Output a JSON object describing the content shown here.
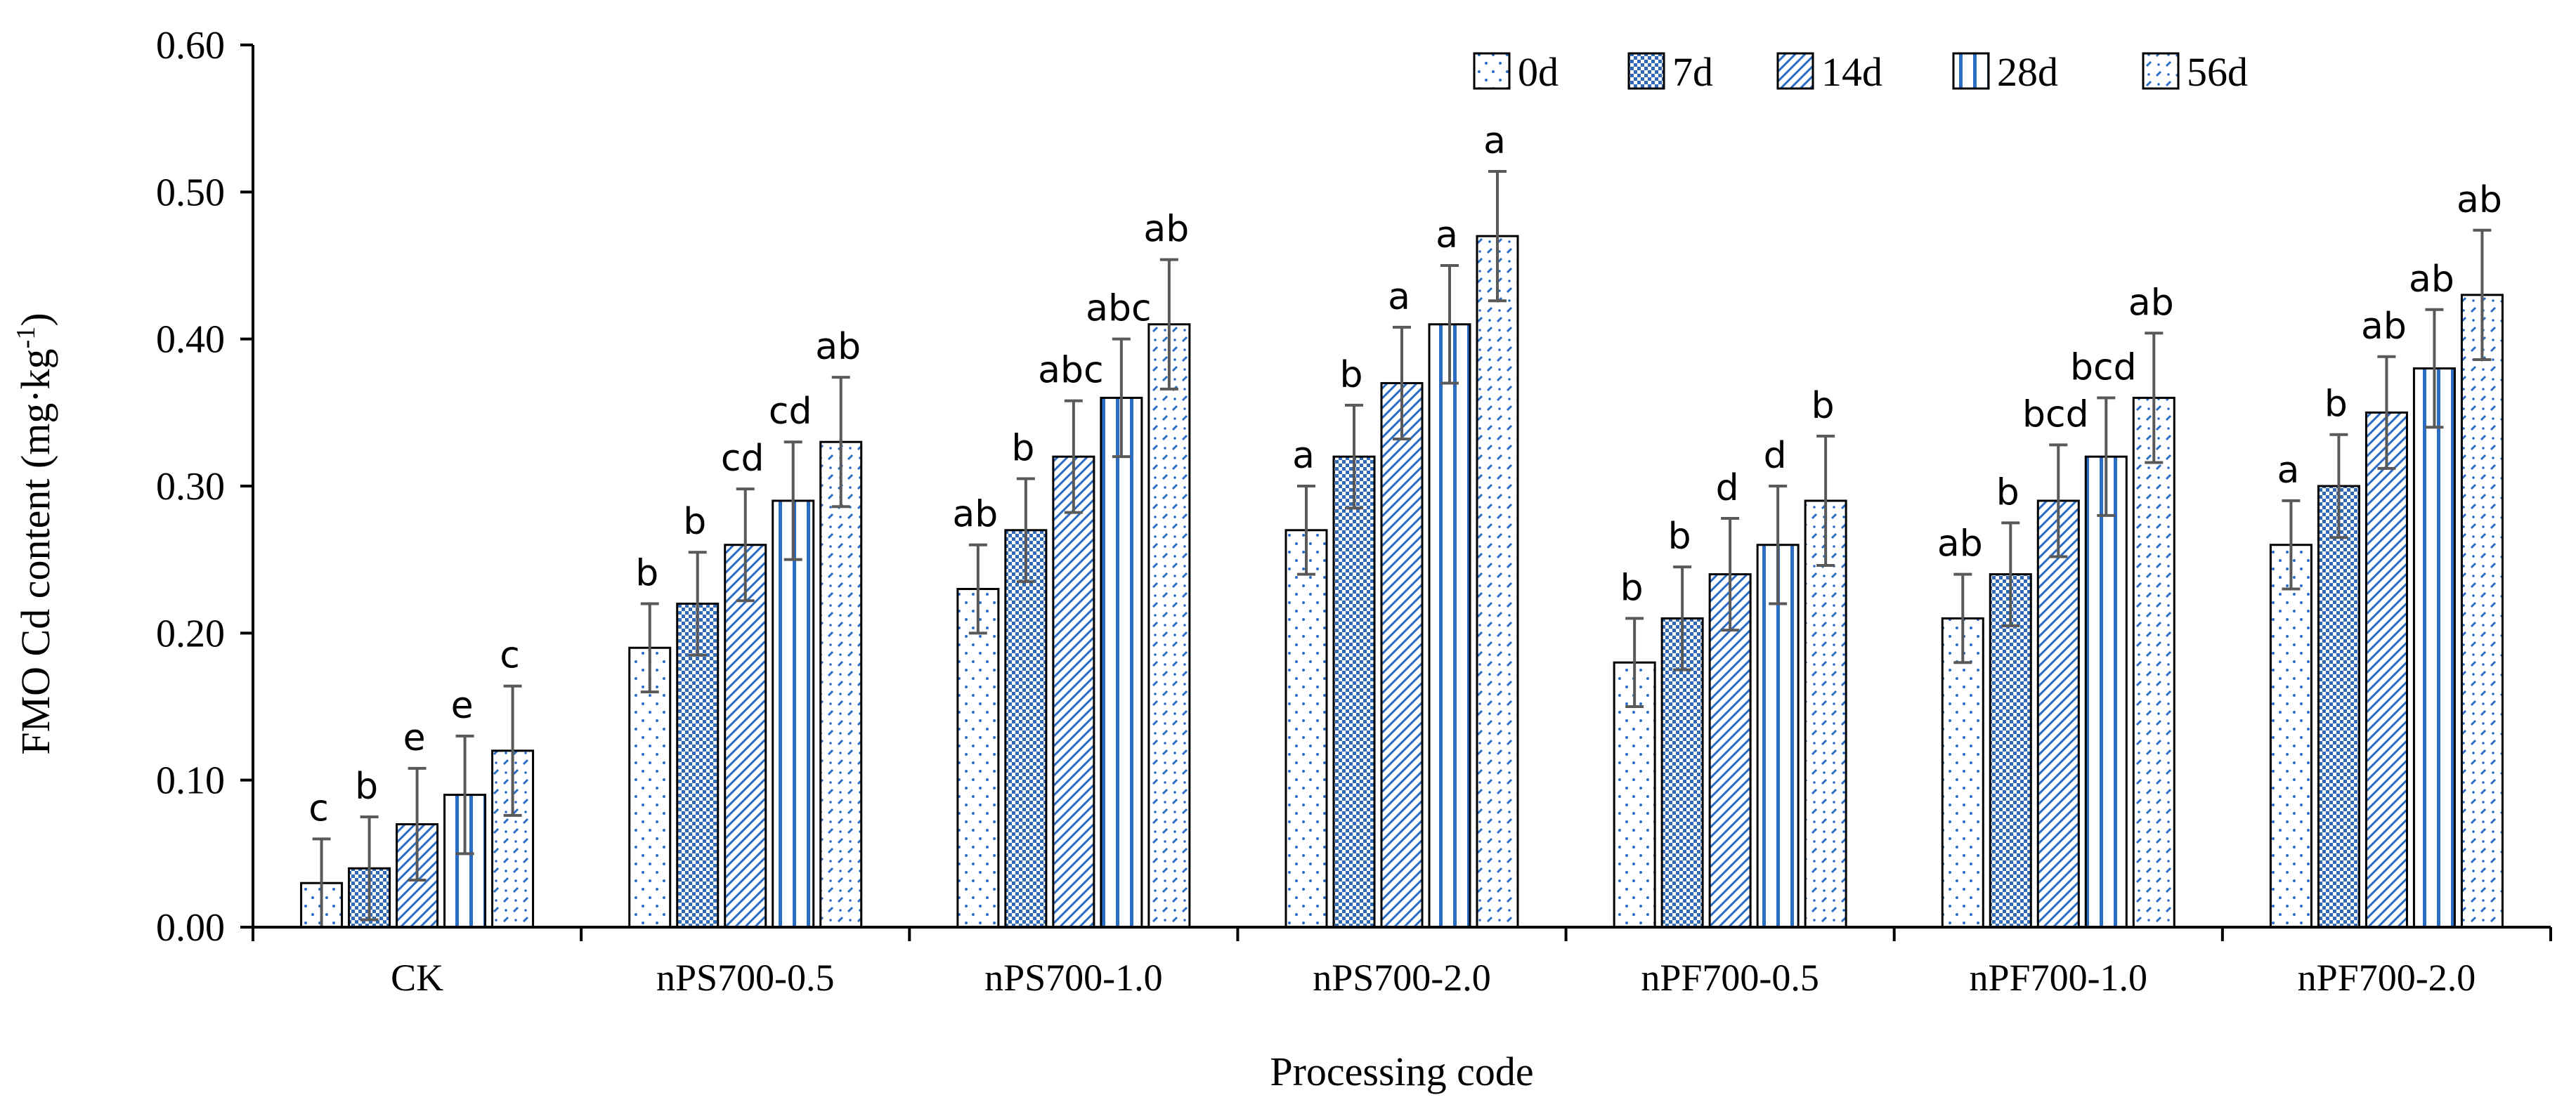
{
  "chart_data": {
    "type": "bar",
    "title": "",
    "xlabel": "Processing code",
    "ylabel": "FMO Cd  content (mg·kg",
    "ylabel_sup": "-1",
    "ylabel_close": ")",
    "ylim": [
      0,
      0.6
    ],
    "yticks": [
      "0.00",
      "0.10",
      "0.20",
      "0.30",
      "0.40",
      "0.50",
      "0.60"
    ],
    "ytick_values": [
      0,
      0.1,
      0.2,
      0.3,
      0.4,
      0.5,
      0.6
    ],
    "legend_position": "top-right",
    "categories": [
      "CK",
      "nPS700-0.5",
      "nPS700-1.0",
      "nPS700-2.0",
      "nPF700-0.5",
      "nPF700-1.0",
      "nPF700-2.0"
    ],
    "series": [
      {
        "name": "0d",
        "pattern": "dots",
        "values": [
          0.03,
          0.19,
          0.23,
          0.27,
          0.18,
          0.21,
          0.26
        ],
        "errors": [
          0.03,
          0.03,
          0.03,
          0.03,
          0.03,
          0.03,
          0.03
        ],
        "letters": [
          "c",
          "b",
          "ab",
          "a",
          "b",
          "ab",
          "a"
        ]
      },
      {
        "name": "7d",
        "pattern": "cross",
        "values": [
          0.04,
          0.22,
          0.27,
          0.32,
          0.21,
          0.24,
          0.3
        ],
        "errors": [
          0.035,
          0.035,
          0.035,
          0.035,
          0.035,
          0.035,
          0.035
        ],
        "letters": [
          "b",
          "b",
          "b",
          "b",
          "b",
          "b",
          "b"
        ]
      },
      {
        "name": "14d",
        "pattern": "diag",
        "values": [
          0.07,
          0.26,
          0.32,
          0.37,
          0.24,
          0.29,
          0.35
        ],
        "errors": [
          0.038,
          0.038,
          0.038,
          0.038,
          0.038,
          0.038,
          0.038
        ],
        "letters": [
          "e",
          "cd",
          "abc",
          "a",
          "d",
          "bcd",
          "ab"
        ]
      },
      {
        "name": "28d",
        "pattern": "vert",
        "values": [
          0.09,
          0.29,
          0.36,
          0.41,
          0.26,
          0.32,
          0.38
        ],
        "errors": [
          0.04,
          0.04,
          0.04,
          0.04,
          0.04,
          0.04,
          0.04
        ],
        "letters": [
          "e",
          "cd",
          "abc",
          "a",
          "d",
          "bcd",
          "ab"
        ]
      },
      {
        "name": "56d",
        "pattern": "dash",
        "values": [
          0.12,
          0.33,
          0.41,
          0.47,
          0.29,
          0.36,
          0.43
        ],
        "errors": [
          0.044,
          0.044,
          0.044,
          0.044,
          0.044,
          0.044,
          0.044
        ],
        "letters": [
          "c",
          "ab",
          "ab",
          "a",
          "b",
          "ab",
          "ab"
        ]
      }
    ],
    "colors": {
      "outline": "#000000",
      "pattern": "#2b6cc4",
      "error_bar": "#595959",
      "axis": "#000000"
    }
  }
}
